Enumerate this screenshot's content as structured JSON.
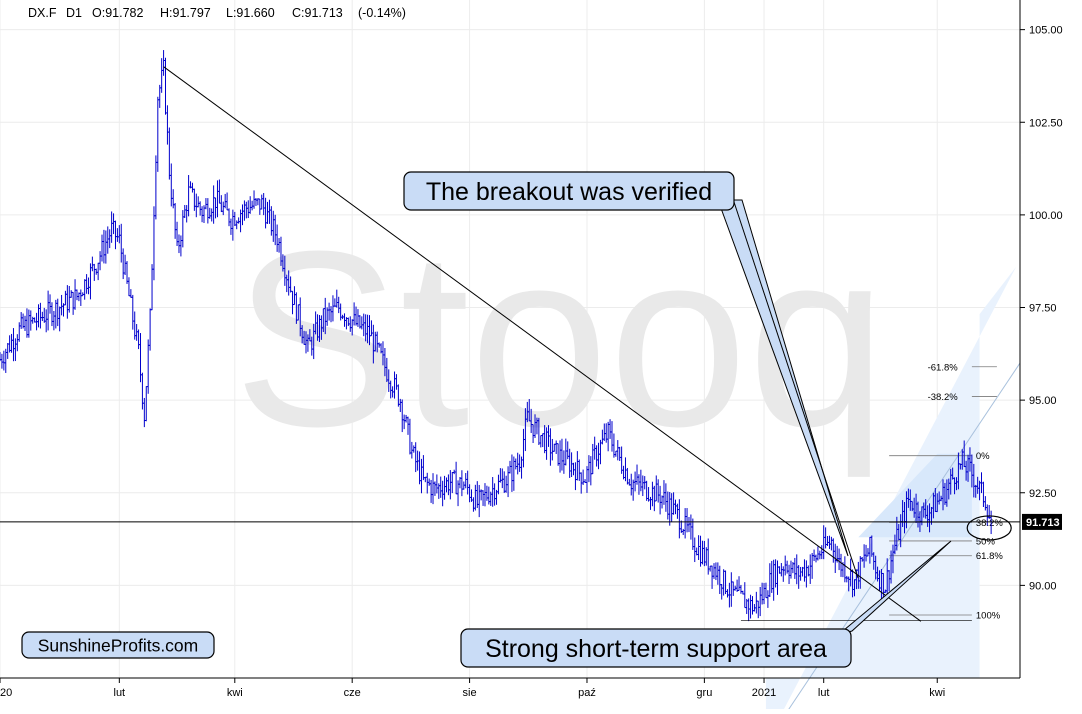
{
  "chart_data": {
    "type": "bar",
    "subtype": "ohlc",
    "header": {
      "symbol": "DX.F",
      "interval": "D1",
      "open": "O:91.782",
      "high": "H:91.797",
      "low": "L:91.660",
      "close": "C:91.713",
      "change": "(-0.14%)"
    },
    "watermark": "Stooq",
    "last_price_label": "91.713",
    "last_price": 91.713,
    "ylim": [
      87.5,
      105.8
    ],
    "y_ticks": [
      "105.00",
      "102.50",
      "100.00",
      "97.50",
      "95.00",
      "92.50",
      "90.00"
    ],
    "y_tick_values": [
      105.0,
      102.5,
      100.0,
      97.5,
      95.0,
      92.5,
      90.0
    ],
    "x_tick_labels": [
      "20",
      "lut",
      "kwi",
      "cze",
      "sie",
      "paź",
      "gru",
      "2021",
      "lut",
      "kwi"
    ],
    "x_tick_days": [
      0,
      62,
      122,
      183,
      244,
      305,
      366,
      397,
      428,
      487
    ],
    "x_range_days": [
      0,
      530
    ],
    "grid": true,
    "price_path": [
      [
        0,
        96.1
      ],
      [
        10,
        96.9
      ],
      [
        20,
        97.2
      ],
      [
        30,
        97.5
      ],
      [
        40,
        97.8
      ],
      [
        50,
        98.7
      ],
      [
        58,
        99.6
      ],
      [
        62,
        99.3
      ],
      [
        68,
        97.5
      ],
      [
        72,
        96.3
      ],
      [
        75,
        94.6
      ],
      [
        78,
        97.2
      ],
      [
        82,
        103.2
      ],
      [
        85,
        103.9
      ],
      [
        88,
        101.2
      ],
      [
        92,
        99.0
      ],
      [
        98,
        100.6
      ],
      [
        105,
        100.1
      ],
      [
        112,
        100.4
      ],
      [
        120,
        99.9
      ],
      [
        128,
        100.2
      ],
      [
        136,
        100.3
      ],
      [
        144,
        99.4
      ],
      [
        152,
        97.8
      ],
      [
        160,
        96.4
      ],
      [
        168,
        97.2
      ],
      [
        176,
        97.5
      ],
      [
        184,
        97.1
      ],
      [
        192,
        96.8
      ],
      [
        200,
        95.9
      ],
      [
        208,
        95.0
      ],
      [
        214,
        93.6
      ],
      [
        220,
        92.8
      ],
      [
        226,
        92.6
      ],
      [
        234,
        92.8
      ],
      [
        242,
        92.7
      ],
      [
        248,
        92.2
      ],
      [
        256,
        92.6
      ],
      [
        264,
        92.9
      ],
      [
        270,
        93.4
      ],
      [
        274,
        94.5
      ],
      [
        280,
        94.1
      ],
      [
        288,
        93.6
      ],
      [
        296,
        93.3
      ],
      [
        304,
        92.9
      ],
      [
        310,
        93.6
      ],
      [
        316,
        94.1
      ],
      [
        322,
        93.4
      ],
      [
        328,
        92.8
      ],
      [
        336,
        92.6
      ],
      [
        344,
        92.4
      ],
      [
        352,
        91.9
      ],
      [
        358,
        91.4
      ],
      [
        364,
        90.9
      ],
      [
        372,
        90.4
      ],
      [
        380,
        89.8
      ],
      [
        386,
        89.6
      ],
      [
        392,
        89.4
      ],
      [
        396,
        89.7
      ],
      [
        402,
        90.3
      ],
      [
        408,
        90.6
      ],
      [
        414,
        90.3
      ],
      [
        420,
        90.5
      ],
      [
        426,
        90.9
      ],
      [
        432,
        91.2
      ],
      [
        436,
        90.6
      ],
      [
        440,
        90.4
      ],
      [
        444,
        90.1
      ],
      [
        448,
        90.6
      ],
      [
        452,
        91.0
      ],
      [
        456,
        90.3
      ],
      [
        460,
        90.0
      ],
      [
        464,
        90.9
      ],
      [
        468,
        91.6
      ],
      [
        472,
        92.3
      ],
      [
        476,
        92.1
      ],
      [
        480,
        91.9
      ],
      [
        484,
        92.1
      ],
      [
        488,
        92.3
      ],
      [
        492,
        92.6
      ],
      [
        496,
        93.0
      ],
      [
        500,
        93.3
      ],
      [
        504,
        93.1
      ],
      [
        508,
        92.7
      ],
      [
        512,
        92.3
      ],
      [
        515,
        91.7
      ]
    ],
    "trendline": {
      "from": [
        85,
        104.0
      ],
      "to": [
        465,
        89.3
      ]
    },
    "horizontal_line": {
      "price": 91.713
    },
    "fibonacci": {
      "levels": [
        {
          "label": "-61.8%",
          "price": 95.9
        },
        {
          "label": "-38.2%",
          "price": 95.1
        },
        {
          "label": "0%",
          "price": 93.5
        },
        {
          "label": "38.2%",
          "price": 91.7
        },
        {
          "label": "50%",
          "price": 91.2
        },
        {
          "label": "61.8%",
          "price": 90.8
        },
        {
          "label": "100%",
          "price": 89.2
        }
      ]
    },
    "annotations": [
      {
        "text": "The breakout was verified",
        "price": 100.3,
        "day": 366
      },
      {
        "text": "Strong short-term support area",
        "price": 88.3,
        "day": 400
      },
      {
        "text": "SunshineProfits.com",
        "price": 88.5,
        "day": 40
      }
    ]
  }
}
